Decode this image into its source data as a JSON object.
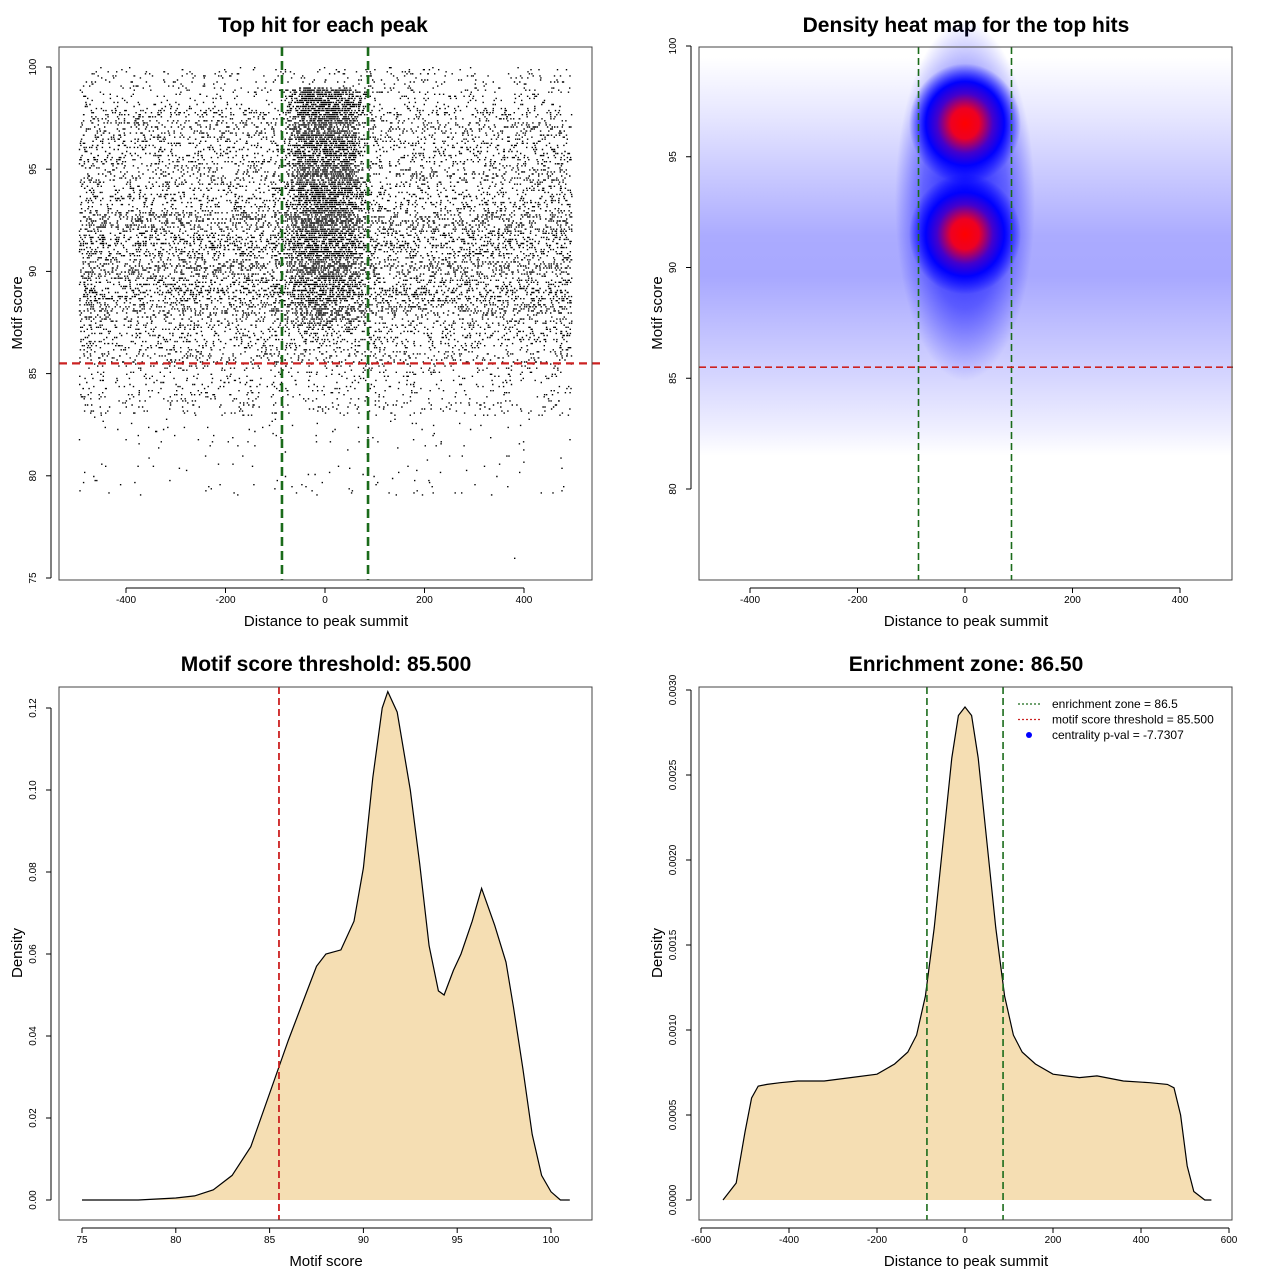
{
  "chart_data": [
    {
      "type": "scatter",
      "title": "Top hit for each peak",
      "xlabel": "Distance to peak summit",
      "ylabel": "Motif score",
      "xlim": [
        -500,
        500
      ],
      "ylim": [
        75,
        100
      ],
      "xticks": [
        "-400",
        "-200",
        "0",
        "200",
        "400"
      ],
      "yticks": [
        "75",
        "80",
        "85",
        "90",
        "95",
        "100"
      ],
      "point_color": "#000000",
      "vlines": [
        -86.5,
        86.5
      ],
      "vline_color": "#1a6b1a",
      "hline": 85.5,
      "hline_color": "#cc2222",
      "point_density_bands": [
        {
          "score_range": [
            98,
            100
          ],
          "relative_density": 0.25
        },
        {
          "score_range": [
            93,
            98
          ],
          "relative_density": 0.6
        },
        {
          "score_range": [
            88,
            93
          ],
          "relative_density": 1.0
        },
        {
          "score_range": [
            85.5,
            88
          ],
          "relative_density": 0.55
        },
        {
          "score_range": [
            83,
            85.5
          ],
          "relative_density": 0.25
        },
        {
          "score_range": [
            79,
            83
          ],
          "relative_density": 0.04
        }
      ],
      "central_cluster": {
        "x_range": [
          -86,
          86
        ],
        "score_range": [
          87,
          99
        ]
      },
      "sample_points": [
        {
          "x": 380,
          "y": 76
        },
        {
          "x": -235,
          "y": 79.5
        },
        {
          "x": -230,
          "y": 79.4
        },
        {
          "x": 300,
          "y": 79.6
        },
        {
          "x": -450,
          "y": 80.6
        },
        {
          "x": 390,
          "y": 80.2
        }
      ]
    },
    {
      "type": "heatmap",
      "title": "Density heat map for the top hits",
      "xlabel": "Distance to peak summit",
      "ylabel": "Motif score",
      "xlim": [
        -500,
        500
      ],
      "ylim": [
        76,
        100
      ],
      "xticks": [
        "-400",
        "-200",
        "0",
        "200",
        "400"
      ],
      "yticks": [
        "80",
        "85",
        "90",
        "95",
        "100"
      ],
      "color_scale": [
        "#ffffff",
        "#0000ff",
        "#ff0000"
      ],
      "hotspots": [
        {
          "x": 0,
          "y": 96.5,
          "peak": "red"
        },
        {
          "x": 0,
          "y": 91.5,
          "peak": "red"
        }
      ],
      "background_band": {
        "score_center": 91,
        "color": "blue"
      },
      "vlines": [
        -86.5,
        86.5
      ],
      "vline_color": "#1a6b1a",
      "hline": 85.5,
      "hline_color": "#cc2222"
    },
    {
      "type": "area",
      "title": "Motif score threshold: 85.500",
      "xlabel": "Motif score",
      "ylabel": "Density",
      "xlim": [
        75,
        101
      ],
      "ylim": [
        0,
        0.12
      ],
      "xticks": [
        "75",
        "80",
        "85",
        "90",
        "95",
        "100"
      ],
      "yticks": [
        "0.00",
        "0.02",
        "0.04",
        "0.06",
        "0.08",
        "0.10",
        "0.12"
      ],
      "fill_color": "#f5deb3",
      "x": [
        75,
        78,
        80,
        81,
        82,
        83,
        84,
        85,
        86,
        87,
        87.5,
        88,
        88.8,
        89.5,
        90,
        90.5,
        91,
        91.3,
        91.8,
        92.5,
        93,
        93.5,
        94,
        94.3,
        94.8,
        95.2,
        95.8,
        96.3,
        97,
        97.6,
        98,
        98.5,
        99,
        99.5,
        100,
        100.5,
        101
      ],
      "y": [
        0,
        0,
        0.0005,
        0.001,
        0.0025,
        0.006,
        0.013,
        0.026,
        0.039,
        0.051,
        0.057,
        0.06,
        0.061,
        0.068,
        0.081,
        0.103,
        0.12,
        0.124,
        0.119,
        0.1,
        0.082,
        0.062,
        0.051,
        0.05,
        0.056,
        0.06,
        0.068,
        0.076,
        0.067,
        0.058,
        0.047,
        0.032,
        0.016,
        0.006,
        0.002,
        0,
        0
      ],
      "vline": 85.5,
      "vline_color": "#cc2222"
    },
    {
      "type": "area",
      "title": "Enrichment zone: 86.50",
      "xlabel": "Distance to peak summit",
      "ylabel": "Density",
      "xlim": [
        -600,
        600
      ],
      "ylim": [
        0,
        0.003
      ],
      "xticks": [
        "-600",
        "-400",
        "-200",
        "0",
        "200",
        "400",
        "600"
      ],
      "yticks": [
        "0.0000",
        "0.0005",
        "0.0010",
        "0.0015",
        "0.0020",
        "0.0025",
        "0.0030"
      ],
      "fill_color": "#f5deb3",
      "x": [
        -550,
        -520,
        -500,
        -485,
        -470,
        -450,
        -420,
        -380,
        -320,
        -260,
        -200,
        -160,
        -130,
        -110,
        -90,
        -70,
        -50,
        -30,
        -15,
        0,
        15,
        30,
        50,
        70,
        90,
        110,
        130,
        160,
        200,
        260,
        300,
        360,
        420,
        460,
        475,
        490,
        505,
        520,
        545,
        560
      ],
      "y": [
        0,
        0.0001,
        0.0004,
        0.0006,
        0.00067,
        0.00068,
        0.00069,
        0.0007,
        0.0007,
        0.00072,
        0.00074,
        0.0008,
        0.00087,
        0.00097,
        0.0012,
        0.0016,
        0.0021,
        0.0026,
        0.00285,
        0.0029,
        0.00285,
        0.0026,
        0.0021,
        0.0016,
        0.0012,
        0.00097,
        0.00087,
        0.0008,
        0.00074,
        0.00072,
        0.00073,
        0.0007,
        0.00069,
        0.00068,
        0.00066,
        0.0005,
        0.0002,
        5e-05,
        0,
        0
      ],
      "vlines": [
        -86.5,
        86.5
      ],
      "vline_color": "#1a6b1a",
      "legend": [
        {
          "label": "enrichment zone = 86.5",
          "style": "dotted",
          "color": "#1a6b1a"
        },
        {
          "label": "motif score threshold = 85.500",
          "style": "dotted",
          "color": "#cc2222"
        },
        {
          "label": "centrality p-val = -7.7307",
          "style": "point",
          "color": "#0000ff"
        }
      ],
      "legend_position": "top-right"
    }
  ]
}
